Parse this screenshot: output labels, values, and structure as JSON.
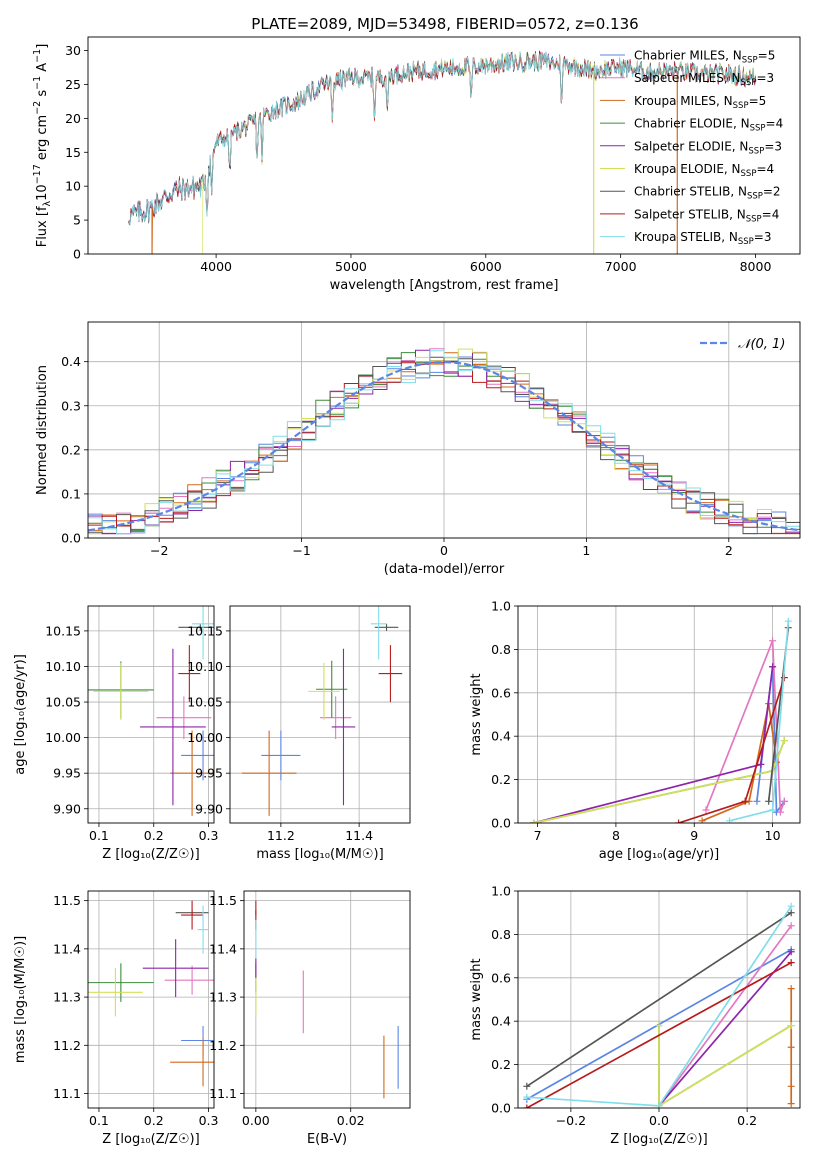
{
  "title": "PLATE=2089, MJD=53498, FIBERID=0572, z=0.136",
  "series": [
    {
      "name": "Chabrier MILES",
      "nssp": "5",
      "color": "#5b86e5"
    },
    {
      "name": "Salpeter MILES",
      "nssp": "3",
      "color": "#e377c2"
    },
    {
      "name": "Kroupa MILES",
      "nssp": "5",
      "color": "#d2691e"
    },
    {
      "name": "Chabrier ELODIE",
      "nssp": "4",
      "color": "#3c8c3c"
    },
    {
      "name": "Salpeter ELODIE",
      "nssp": "3",
      "color": "#8e24aa"
    },
    {
      "name": "Kroupa ELODIE",
      "nssp": "4",
      "color": "#d4e157"
    },
    {
      "name": "Chabrier STELIB",
      "nssp": "2",
      "color": "#555555"
    },
    {
      "name": "Salpeter STELIB",
      "nssp": "4",
      "color": "#b71c1c"
    },
    {
      "name": "Kroupa STELIB",
      "nssp": "3",
      "color": "#80deea"
    }
  ],
  "chart_data": [
    {
      "id": "spectrum",
      "type": "line",
      "xlabel": "wavelength [Angstrom, rest frame]",
      "ylabel_main": "Flux [f",
      "ylabel_sub": "λ",
      "ylabel_mid": "10",
      "ylabel_exp1": "−17",
      "ylabel_mid2": " erg cm",
      "ylabel_exp2": "−2",
      "ylabel_mid3": " s",
      "ylabel_exp3": "−1",
      "ylabel_mid4": " A",
      "ylabel_exp4": "−1",
      "ylabel_end": "]",
      "xlim": [
        3050,
        8330
      ],
      "ylim": [
        0,
        32
      ],
      "xticks": [
        4000,
        5000,
        6000,
        7000,
        8000
      ],
      "yticks": [
        0,
        5,
        10,
        15,
        20,
        25,
        30
      ],
      "continuum": {
        "x": [
          3350,
          3500,
          3700,
          3900,
          4000,
          4200,
          4400,
          4600,
          4800,
          5000,
          5200,
          5400,
          5600,
          5800,
          6000,
          6200,
          6400,
          6600,
          6800,
          7000,
          7200,
          7400,
          7600,
          7800,
          8000
        ],
        "y": [
          5.6,
          6.5,
          9.5,
          10.0,
          16.5,
          18.5,
          21.0,
          22.5,
          25.0,
          26.0,
          26.0,
          26.8,
          27.2,
          27.5,
          27.8,
          28.3,
          28.5,
          28.0,
          27.0,
          27.6,
          26.8,
          27.0,
          26.5,
          26.5,
          26.0
        ]
      },
      "absorption_lines": [
        3933,
        3968,
        4101,
        4304,
        4340,
        4861,
        5175,
        5270,
        5890,
        6563
      ],
      "model_cutoffs": [
        {
          "series": "Kroupa MILES",
          "min_x": 3525
        },
        {
          "series": "Kroupa ELODIE",
          "min_x": 3900,
          "max_x": 6800
        },
        {
          "series": "Kroupa MILES",
          "max_x": 7420
        }
      ]
    },
    {
      "id": "residuals",
      "type": "histogram",
      "xlabel": "(data-model)/error",
      "ylabel": "Normed distribution",
      "xlim": [
        -2.5,
        2.5
      ],
      "ylim": [
        0,
        0.49
      ],
      "xticks": [
        -2,
        -1,
        0,
        1,
        2
      ],
      "yticks": [
        0.0,
        0.1,
        0.2,
        0.3,
        0.4
      ],
      "bin_width": 0.1,
      "reference": {
        "name": "𝒩(0, 1)",
        "color": "#5b86e5"
      }
    },
    {
      "id": "age_vs_Z",
      "type": "scatter",
      "xlabel": "Z [log₁₀(Z/Z☉)]",
      "ylabel": "age  [log₁₀(age/yr)]",
      "xlim": [
        0.08,
        0.31
      ],
      "ylim": [
        9.88,
        10.185
      ],
      "xticks": [
        0.1,
        0.2,
        0.3
      ],
      "yticks": [
        9.9,
        9.95,
        10.0,
        10.05,
        10.1,
        10.15
      ],
      "points": [
        {
          "series": "Chabrier MILES",
          "x": 0.29,
          "y": 9.975,
          "xerr": 0.04,
          "yerr": 0.035
        },
        {
          "series": "Salpeter MILES",
          "x": 0.255,
          "y": 10.028,
          "xerr": 0.05,
          "yerr": 0.03
        },
        {
          "series": "Kroupa MILES",
          "x": 0.27,
          "y": 9.95,
          "xerr": 0.04,
          "yerr": 0.06
        },
        {
          "series": "Chabrier ELODIE",
          "x": 0.14,
          "y": 10.067,
          "xerr": 0.06,
          "yerr": 0.04
        },
        {
          "series": "Salpeter ELODIE",
          "x": 0.235,
          "y": 10.015,
          "xerr": 0.06,
          "yerr": 0.11
        },
        {
          "series": "Kroupa ELODIE",
          "x": 0.14,
          "y": 10.065,
          "xerr": 0.05,
          "yerr": 0.04
        },
        {
          "series": "Chabrier STELIB",
          "x": 0.285,
          "y": 10.155,
          "xerr": 0.04,
          "yerr": 0.005
        },
        {
          "series": "Salpeter STELIB",
          "x": 0.265,
          "y": 10.09,
          "xerr": 0.02,
          "yerr": 0.04
        },
        {
          "series": "Kroupa STELIB",
          "x": 0.29,
          "y": 10.16,
          "xerr": 0.02,
          "yerr": 0.05
        }
      ]
    },
    {
      "id": "age_vs_mass",
      "type": "scatter",
      "xlabel": "mass [log₁₀(M/M☉)]",
      "xlim": [
        11.07,
        11.53
      ],
      "ylim": [
        9.88,
        10.185
      ],
      "xticks": [
        11.2,
        11.4
      ],
      "yticks": [
        9.9,
        9.95,
        10.0,
        10.05,
        10.1,
        10.15
      ],
      "points": [
        {
          "series": "Chabrier MILES",
          "x": 11.2,
          "y": 9.975,
          "xerr": 0.05,
          "yerr": 0.035
        },
        {
          "series": "Salpeter MILES",
          "x": 11.34,
          "y": 10.028,
          "xerr": 0.04,
          "yerr": 0.03
        },
        {
          "series": "Kroupa MILES",
          "x": 11.17,
          "y": 9.95,
          "xerr": 0.07,
          "yerr": 0.06
        },
        {
          "series": "Chabrier ELODIE",
          "x": 11.33,
          "y": 10.068,
          "xerr": 0.04,
          "yerr": 0.04
        },
        {
          "series": "Salpeter ELODIE",
          "x": 11.36,
          "y": 10.015,
          "xerr": 0.03,
          "yerr": 0.11
        },
        {
          "series": "Kroupa ELODIE",
          "x": 11.31,
          "y": 10.065,
          "xerr": 0.04,
          "yerr": 0.04
        },
        {
          "series": "Chabrier STELIB",
          "x": 11.47,
          "y": 10.155,
          "xerr": 0.03,
          "yerr": 0.005
        },
        {
          "series": "Salpeter STELIB",
          "x": 11.48,
          "y": 10.09,
          "xerr": 0.03,
          "yerr": 0.04
        },
        {
          "series": "Kroupa STELIB",
          "x": 11.45,
          "y": 10.16,
          "xerr": 0.02,
          "yerr": 0.05
        }
      ]
    },
    {
      "id": "massweight_vs_age",
      "type": "line",
      "xlabel": "age  [log₁₀(age/yr)]",
      "ylabel": "mass weight",
      "xlim": [
        6.75,
        10.35
      ],
      "ylim": [
        0,
        1
      ],
      "xticks": [
        7,
        8,
        9,
        10
      ],
      "yticks": [
        0.0,
        0.2,
        0.4,
        0.6,
        0.8,
        1.0
      ],
      "lines": [
        {
          "series": "Chabrier MILES",
          "x": [
            9.8,
            10.0,
            10.05,
            10.15
          ],
          "y": [
            0.1,
            0.72,
            0.05,
            0.1
          ]
        },
        {
          "series": "Salpeter MILES",
          "x": [
            9.15,
            10.0,
            10.1,
            10.15
          ],
          "y": [
            0.06,
            0.84,
            0.05,
            0.1
          ]
        },
        {
          "series": "Kroupa MILES",
          "x": [
            9.1,
            9.7,
            9.95,
            10.05
          ],
          "y": [
            0.01,
            0.1,
            0.55,
            0.28
          ]
        },
        {
          "series": "Chabrier ELODIE",
          "x": [
            6.95,
            10.0,
            10.15
          ],
          "y": [
            0.0,
            0.24,
            0.38
          ]
        },
        {
          "series": "Salpeter ELODIE",
          "x": [
            6.95,
            9.85,
            10.0
          ],
          "y": [
            0.0,
            0.27,
            0.72
          ]
        },
        {
          "series": "Kroupa ELODIE",
          "x": [
            6.95,
            10.0,
            10.15
          ],
          "y": [
            0.0,
            0.24,
            0.38
          ]
        },
        {
          "series": "Chabrier STELIB",
          "x": [
            9.95,
            10.2
          ],
          "y": [
            0.1,
            0.9
          ]
        },
        {
          "series": "Salpeter STELIB",
          "x": [
            8.8,
            9.65,
            10.15
          ],
          "y": [
            0.0,
            0.1,
            0.67
          ]
        },
        {
          "series": "Kroupa STELIB",
          "x": [
            9.45,
            10.0,
            10.2
          ],
          "y": [
            0.01,
            0.06,
            0.93
          ]
        }
      ]
    },
    {
      "id": "mass_vs_Z",
      "type": "scatter",
      "xlabel": "Z [log₁₀(Z/Z☉)]",
      "ylabel": "mass [log₁₀(M/M☉)]",
      "xlim": [
        0.08,
        0.31
      ],
      "ylim": [
        11.07,
        11.52
      ],
      "xticks": [
        0.1,
        0.2,
        0.3
      ],
      "yticks": [
        11.1,
        11.2,
        11.3,
        11.4,
        11.5
      ],
      "points": [
        {
          "series": "Chabrier MILES",
          "x": 0.29,
          "y": 11.21,
          "xerr": 0.04,
          "yerr": 0.03
        },
        {
          "series": "Salpeter MILES",
          "x": 0.27,
          "y": 11.335,
          "xerr": 0.05,
          "yerr": 0.03
        },
        {
          "series": "Kroupa MILES",
          "x": 0.29,
          "y": 11.165,
          "xerr": 0.06,
          "yerr": 0.05
        },
        {
          "series": "Chabrier ELODIE",
          "x": 0.14,
          "y": 11.33,
          "xerr": 0.06,
          "yerr": 0.04
        },
        {
          "series": "Salpeter ELODIE",
          "x": 0.24,
          "y": 11.36,
          "xerr": 0.06,
          "yerr": 0.06
        },
        {
          "series": "Kroupa ELODIE",
          "x": 0.13,
          "y": 11.31,
          "xerr": 0.05,
          "yerr": 0.05
        },
        {
          "series": "Chabrier STELIB",
          "x": 0.27,
          "y": 11.475,
          "xerr": 0.03,
          "yerr": 0.005
        },
        {
          "series": "Salpeter STELIB",
          "x": 0.27,
          "y": 11.47,
          "xerr": 0.02,
          "yerr": 0.03
        },
        {
          "series": "Kroupa STELIB",
          "x": 0.29,
          "y": 11.44,
          "xerr": 0.01,
          "yerr": 0.05
        }
      ]
    },
    {
      "id": "mass_vs_ebv",
      "type": "scatter",
      "xlabel": "E(B-V)",
      "xlim": [
        -0.0025,
        0.0325
      ],
      "ylim": [
        11.07,
        11.52
      ],
      "xticks": [
        0.0,
        0.02
      ],
      "xticklabels": [
        "0.00",
        "0.02"
      ],
      "yticks": [
        11.1,
        11.2,
        11.3,
        11.4,
        11.5
      ],
      "points": [
        {
          "series": "Chabrier MILES",
          "x": 0.03,
          "y": 11.175,
          "yerr": 0.065
        },
        {
          "series": "Salpeter MILES",
          "x": 0.01,
          "y": 11.29,
          "yerr": 0.065
        },
        {
          "series": "Kroupa MILES",
          "x": 0.027,
          "y": 11.155,
          "yerr": 0.065
        },
        {
          "series": "Chabrier ELODIE",
          "x": 0.0,
          "y": 11.34,
          "yerr": 0.03
        },
        {
          "series": "Salpeter ELODIE",
          "x": 0.0,
          "y": 11.36,
          "yerr": 0.02
        },
        {
          "series": "Kroupa ELODIE",
          "x": 0.0,
          "y": 11.3,
          "yerr": 0.04
        },
        {
          "series": "Chabrier STELIB",
          "x": 0.0,
          "y": 11.475,
          "yerr": 0.005
        },
        {
          "series": "Salpeter STELIB",
          "x": 0.0,
          "y": 11.47,
          "yerr": 0.03
        },
        {
          "series": "Kroupa STELIB",
          "x": 0.0,
          "y": 11.42,
          "yerr": 0.04
        }
      ]
    },
    {
      "id": "massweight_vs_Z",
      "type": "line",
      "xlabel": "Z [log₁₀(Z/Z☉)]",
      "ylabel": "mass weight",
      "xlim": [
        -0.32,
        0.32
      ],
      "ylim": [
        0,
        1
      ],
      "xticks": [
        -0.2,
        0.0,
        0.2
      ],
      "xticklabels": [
        "−0.2",
        "0.0",
        "0.2"
      ],
      "yticks": [
        0.0,
        0.2,
        0.4,
        0.6,
        0.8,
        1.0
      ],
      "lines": [
        {
          "series": "Chabrier MILES",
          "x": [
            -0.3,
            0.3
          ],
          "y": [
            0.04,
            0.73
          ]
        },
        {
          "series": "Salpeter MILES",
          "x": [
            0.0,
            0.3
          ],
          "y": [
            0.01,
            0.84
          ]
        },
        {
          "series": "Kroupa MILES",
          "x": [
            0.3,
            0.3,
            0.3,
            0.3
          ],
          "y": [
            0.02,
            0.1,
            0.28,
            0.55
          ]
        },
        {
          "series": "Chabrier ELODIE",
          "x": [
            0.0,
            0.0,
            0.3
          ],
          "y": [
            0.38,
            0.01,
            0.38
          ]
        },
        {
          "series": "Salpeter ELODIE",
          "x": [
            0.0,
            0.3
          ],
          "y": [
            0.01,
            0.72
          ]
        },
        {
          "series": "Kroupa ELODIE",
          "x": [
            0.0,
            0.0,
            0.3
          ],
          "y": [
            0.38,
            0.01,
            0.38
          ]
        },
        {
          "series": "Chabrier STELIB",
          "x": [
            -0.3,
            0.3
          ],
          "y": [
            0.1,
            0.9
          ]
        },
        {
          "series": "Salpeter STELIB",
          "x": [
            -0.3,
            0.3
          ],
          "y": [
            0.0,
            0.67
          ]
        },
        {
          "series": "Kroupa STELIB",
          "x": [
            -0.3,
            0.0,
            0.3
          ],
          "y": [
            0.05,
            0.01,
            0.93
          ]
        }
      ]
    }
  ]
}
